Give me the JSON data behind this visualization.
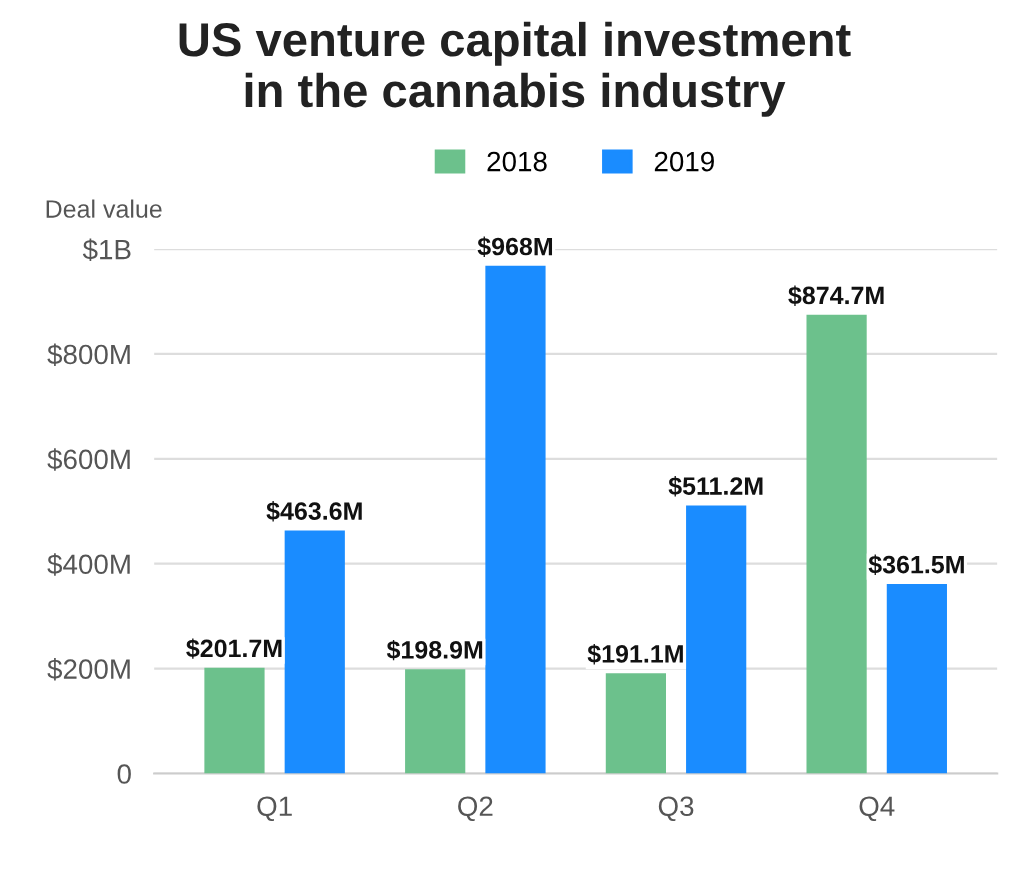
{
  "chart_data": {
    "type": "bar",
    "title": "US venture capital investment\nin the cannabis industry",
    "ylabel": "Deal value",
    "categories": [
      "Q1",
      "Q2",
      "Q3",
      "Q4"
    ],
    "series": [
      {
        "name": "2018",
        "color": "#6cc18c",
        "values": [
          201700000,
          198900000,
          191100000,
          874700000
        ],
        "value_labels": [
          "$201.7M",
          "$198.9M",
          "$191.1M",
          "$874.7M"
        ]
      },
      {
        "name": "2019",
        "color": "#1a8cff",
        "values": [
          463600000,
          968000000,
          511200000,
          361500000
        ],
        "value_labels": [
          "$463.6M",
          "$968M",
          "$511.2M",
          "$361.5M"
        ]
      }
    ],
    "ylim": [
      0,
      1000000000
    ],
    "yticks": [
      0,
      {
        "value": 200000000,
        "label": "$200M"
      },
      {
        "value": 400000000,
        "label": "$400M"
      },
      {
        "value": 600000000,
        "label": "$600M"
      },
      {
        "value": 800000000,
        "label": "$800M"
      },
      {
        "value": 1000000000,
        "label": "$1B"
      }
    ],
    "grid": "y",
    "legend": "top"
  }
}
